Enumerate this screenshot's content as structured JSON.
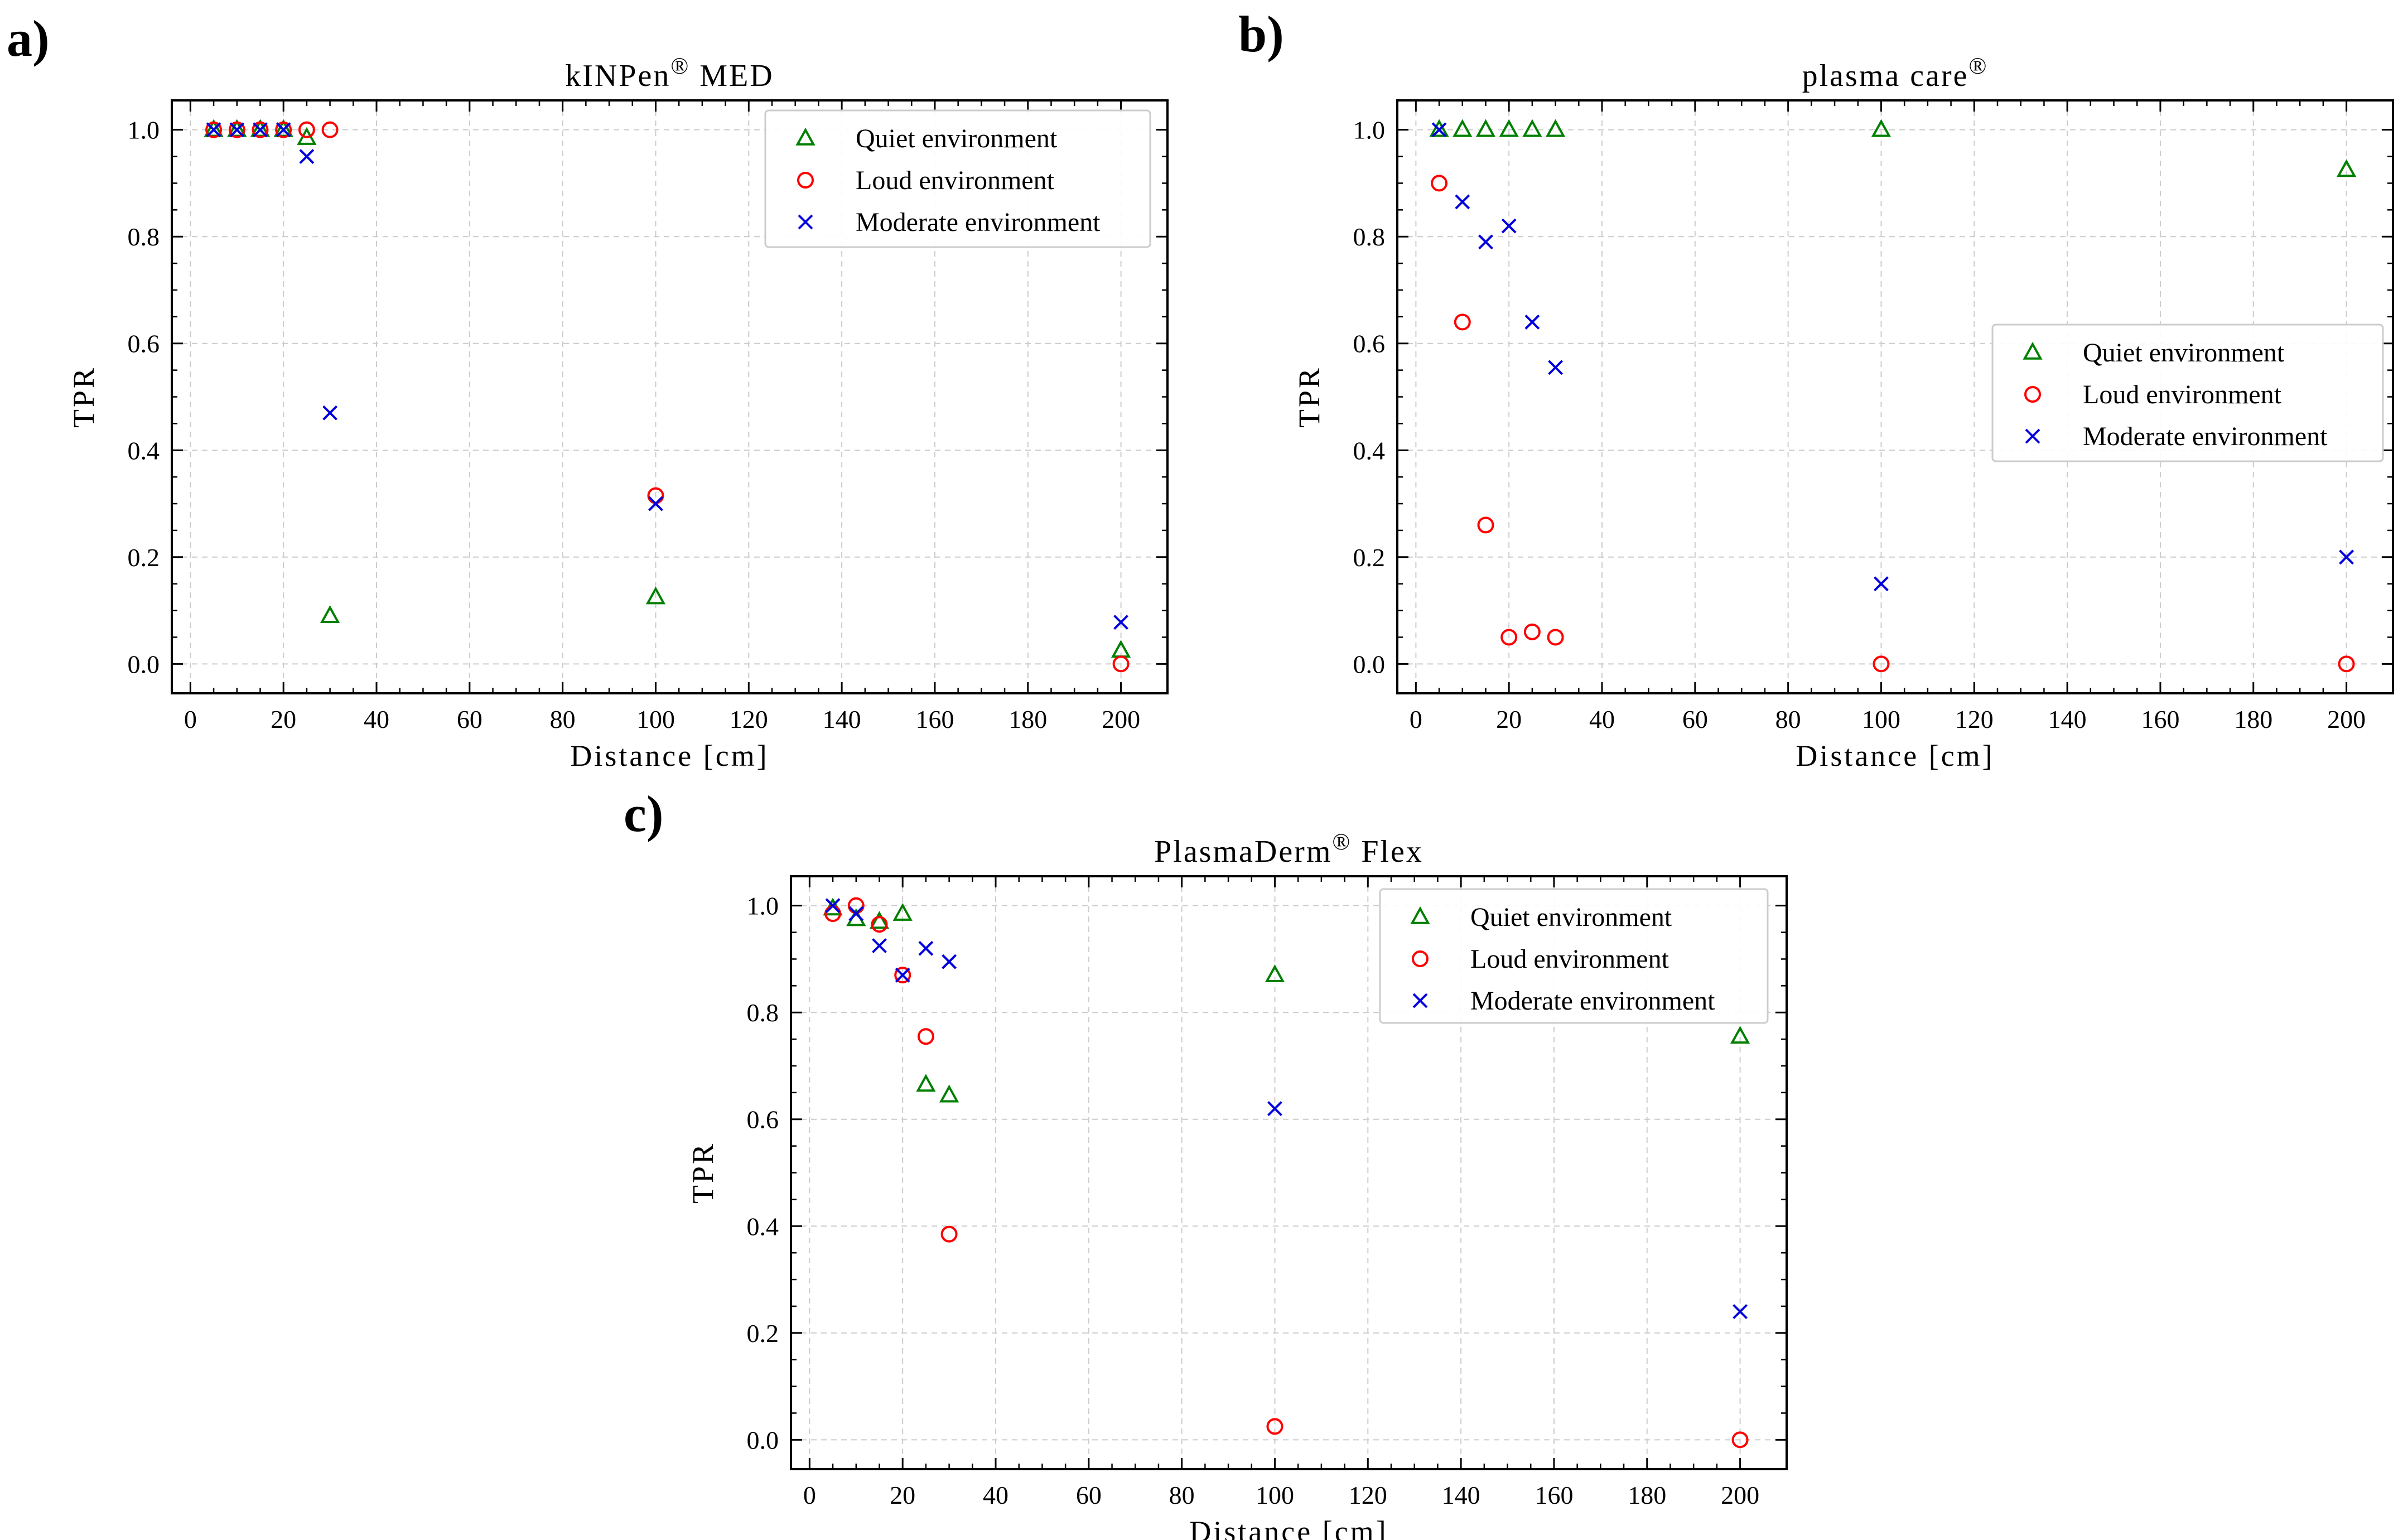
{
  "figure": {
    "shared_xlabel": "Distance [cm]",
    "shared_ylabel": "TPR",
    "colors": {
      "quiet": "#008000",
      "loud": "#ff0000",
      "moderate": "#0000dd",
      "grid": "#cccccc"
    },
    "markers": {
      "quiet": "triangle-icon",
      "loud": "circle-icon",
      "moderate": "cross-icon"
    }
  },
  "chart_data": [
    {
      "panel_label": "a)",
      "type": "scatter",
      "title": "kINPen",
      "title_sup": "®",
      "title_suffix": " MED",
      "xlabel": "Distance [cm]",
      "ylabel": "TPR",
      "xlim": [
        -4,
        210
      ],
      "ylim": [
        -0.055,
        1.055
      ],
      "xticks": [
        0,
        20,
        40,
        60,
        80,
        100,
        120,
        140,
        160,
        180,
        200
      ],
      "yticks": [
        0.0,
        0.2,
        0.4,
        0.6,
        0.8,
        1.0
      ],
      "grid": true,
      "legend_position": "top-right",
      "series": [
        {
          "name": "Quiet environment",
          "key": "quiet",
          "x": [
            5,
            10,
            15,
            20,
            25,
            30,
            100,
            200
          ],
          "y": [
            1.0,
            1.0,
            1.0,
            1.0,
            0.985,
            0.09,
            0.125,
            0.025
          ]
        },
        {
          "name": "Loud environment",
          "key": "loud",
          "x": [
            5,
            10,
            15,
            20,
            25,
            30,
            100,
            200
          ],
          "y": [
            1.0,
            1.0,
            1.0,
            1.0,
            1.0,
            1.0,
            0.315,
            0.0
          ]
        },
        {
          "name": "Moderate environment",
          "key": "moderate",
          "x": [
            5,
            10,
            15,
            20,
            25,
            30,
            100,
            200
          ],
          "y": [
            1.0,
            1.0,
            1.0,
            1.0,
            0.95,
            0.47,
            0.3,
            0.078
          ]
        }
      ]
    },
    {
      "panel_label": "b)",
      "type": "scatter",
      "title": "plasma care",
      "title_sup": "®",
      "title_suffix": "",
      "xlabel": "Distance [cm]",
      "ylabel": "TPR",
      "xlim": [
        -4,
        210
      ],
      "ylim": [
        -0.055,
        1.055
      ],
      "xticks": [
        0,
        20,
        40,
        60,
        80,
        100,
        120,
        140,
        160,
        180,
        200
      ],
      "yticks": [
        0.0,
        0.2,
        0.4,
        0.6,
        0.8,
        1.0
      ],
      "grid": true,
      "legend_position": "center-right",
      "series": [
        {
          "name": "Quiet environment",
          "key": "quiet",
          "x": [
            5,
            10,
            15,
            20,
            25,
            30,
            100,
            200
          ],
          "y": [
            1.0,
            1.0,
            1.0,
            1.0,
            1.0,
            1.0,
            1.0,
            0.925
          ]
        },
        {
          "name": "Loud environment",
          "key": "loud",
          "x": [
            5,
            10,
            15,
            20,
            25,
            30,
            100,
            200
          ],
          "y": [
            0.9,
            0.64,
            0.26,
            0.05,
            0.06,
            0.05,
            0.0,
            0.0
          ]
        },
        {
          "name": "Moderate environment",
          "key": "moderate",
          "x": [
            5,
            10,
            15,
            20,
            25,
            30,
            100,
            200
          ],
          "y": [
            1.0,
            0.865,
            0.79,
            0.82,
            0.64,
            0.555,
            0.15,
            0.2
          ]
        }
      ]
    },
    {
      "panel_label": "c)",
      "type": "scatter",
      "title": "PlasmaDerm",
      "title_sup": "®",
      "title_suffix": " Flex",
      "xlabel": "Distance [cm]",
      "ylabel": "TPR",
      "xlim": [
        -4,
        210
      ],
      "ylim": [
        -0.055,
        1.055
      ],
      "xticks": [
        0,
        20,
        40,
        60,
        80,
        100,
        120,
        140,
        160,
        180,
        200
      ],
      "yticks": [
        0.0,
        0.2,
        0.4,
        0.6,
        0.8,
        1.0
      ],
      "grid": true,
      "legend_position": "top-right",
      "series": [
        {
          "name": "Quiet environment",
          "key": "quiet",
          "x": [
            5,
            10,
            15,
            20,
            25,
            30,
            100,
            200
          ],
          "y": [
            0.995,
            0.975,
            0.97,
            0.985,
            0.665,
            0.645,
            0.87,
            0.755
          ]
        },
        {
          "name": "Loud environment",
          "key": "loud",
          "x": [
            5,
            10,
            15,
            20,
            25,
            30,
            100,
            200
          ],
          "y": [
            0.985,
            1.0,
            0.965,
            0.87,
            0.755,
            0.385,
            0.025,
            0.0
          ]
        },
        {
          "name": "Moderate environment",
          "key": "moderate",
          "x": [
            5,
            10,
            15,
            20,
            25,
            30,
            100,
            200
          ],
          "y": [
            1.0,
            0.985,
            0.925,
            0.87,
            0.92,
            0.895,
            0.62,
            0.24
          ]
        }
      ]
    }
  ]
}
